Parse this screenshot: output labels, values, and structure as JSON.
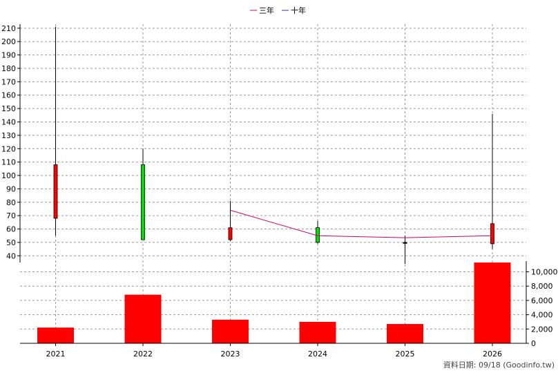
{
  "chart_data": {
    "type": "candlestick+bar",
    "legend": [
      {
        "label": "三年",
        "color": "#cc0066"
      },
      {
        "label": "十年",
        "color": "#3333aa"
      }
    ],
    "categories": [
      "2021",
      "2022",
      "2023",
      "2024",
      "2025",
      "2026"
    ],
    "price_axis": {
      "ylim": [
        35,
        213
      ],
      "ticks": [
        40,
        50,
        60,
        70,
        80,
        90,
        100,
        110,
        120,
        130,
        140,
        150,
        160,
        170,
        180,
        190,
        200,
        210
      ]
    },
    "candles": [
      {
        "x": "2021",
        "open": 68,
        "close": 108,
        "high": 211,
        "low": 55,
        "color": "#ff0000"
      },
      {
        "x": "2022",
        "open": 108,
        "close": 52,
        "high": 120,
        "low": 52,
        "color": "#00dd00"
      },
      {
        "x": "2023",
        "open": 52,
        "close": 61,
        "high": 81,
        "low": 51,
        "color": "#ff0000"
      },
      {
        "x": "2024",
        "open": 61,
        "close": 50,
        "high": 66,
        "low": 49,
        "color": "#00dd00"
      },
      {
        "x": "2025",
        "open": 50,
        "close": 50,
        "high": 55,
        "low": 34,
        "color": "#000000"
      },
      {
        "x": "2026",
        "open": 49,
        "close": 64,
        "high": 146,
        "low": 45,
        "color": "#ff0000"
      }
    ],
    "series": [
      {
        "name": "三年",
        "color": "#cc0066",
        "points": [
          {
            "x": "2023",
            "y": 74
          },
          {
            "x": "2024",
            "y": 55
          },
          {
            "x": "2025",
            "y": 53.5
          },
          {
            "x": "2026",
            "y": 55
          }
        ]
      }
    ],
    "volume_axis": {
      "ylim": [
        0,
        11500
      ],
      "ticks": [
        0,
        2000,
        4000,
        6000,
        8000,
        10000
      ],
      "tick_labels": [
        "0",
        "2,000",
        "4,000",
        "6,000",
        "8,000",
        "10,000"
      ]
    },
    "volumes": [
      {
        "x": "2021",
        "value": 2200
      },
      {
        "x": "2022",
        "value": 6800
      },
      {
        "x": "2023",
        "value": 3300
      },
      {
        "x": "2024",
        "value": 3000
      },
      {
        "x": "2025",
        "value": 2700
      },
      {
        "x": "2026",
        "value": 11300
      }
    ],
    "volume_color": "#ff0000",
    "grid": true
  },
  "footer": "資料日期: 09/18  (Goodinfo.tw)"
}
